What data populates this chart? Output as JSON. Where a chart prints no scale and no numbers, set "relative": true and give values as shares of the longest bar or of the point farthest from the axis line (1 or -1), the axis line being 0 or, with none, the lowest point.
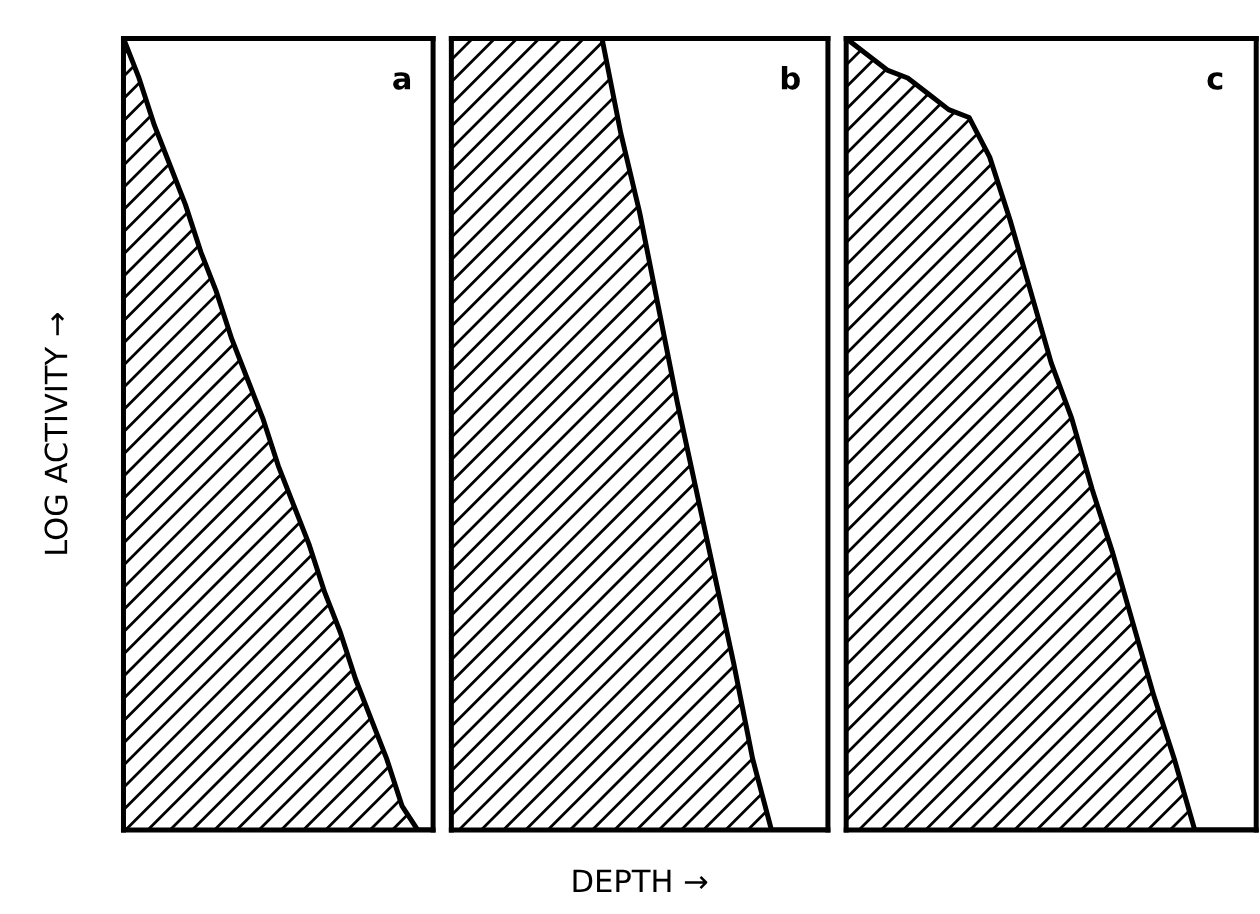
{
  "chart_data": [
    {
      "type": "area",
      "relative": true,
      "ylabel": "LOG ACTIVITY →",
      "tick_labels": false,
      "categories": [
        null,
        null,
        null,
        null,
        null,
        null,
        null,
        null,
        null,
        null,
        null,
        null,
        null,
        null,
        null,
        null,
        null,
        null,
        null,
        null,
        null
      ],
      "series": [
        {
          "name": "a",
          "color": "#000000",
          "values": [
            1,
            0.95,
            0.89,
            0.84,
            0.79,
            0.73,
            0.68,
            0.62,
            0.57,
            0.52,
            0.46,
            0.41,
            0.36,
            0.3,
            0.25,
            0.19,
            0.14,
            0.09,
            0.03,
            0,
            0
          ]
        }
      ]
    },
    {
      "type": "area",
      "relative": true,
      "xlabel": "DEPTH →",
      "tick_labels": false,
      "categories": [
        null,
        null,
        null,
        null,
        null,
        null,
        null,
        null,
        null,
        null,
        null,
        null,
        null,
        null,
        null,
        null,
        null,
        null,
        null,
        null,
        null
      ],
      "series": [
        {
          "name": "b",
          "color": "#000000",
          "values": [
            1,
            1,
            1,
            1,
            1,
            1,
            1,
            1,
            1,
            0.88,
            0.78,
            0.66,
            0.54,
            0.43,
            0.32,
            0.21,
            0.09,
            0,
            0,
            0,
            0
          ]
        }
      ]
    },
    {
      "type": "area",
      "relative": true,
      "tick_labels": false,
      "categories": [
        null,
        null,
        null,
        null,
        null,
        null,
        null,
        null,
        null,
        null,
        null,
        null,
        null,
        null,
        null,
        null,
        null,
        null,
        null,
        null,
        null
      ],
      "series": [
        {
          "name": "c",
          "color": "#000000",
          "values": [
            1,
            0.98,
            0.96,
            0.95,
            0.93,
            0.91,
            0.9,
            0.85,
            0.77,
            0.68,
            0.59,
            0.52,
            0.43,
            0.35,
            0.26,
            0.17,
            0.09,
            0,
            0,
            0,
            0
          ]
        }
      ]
    }
  ]
}
